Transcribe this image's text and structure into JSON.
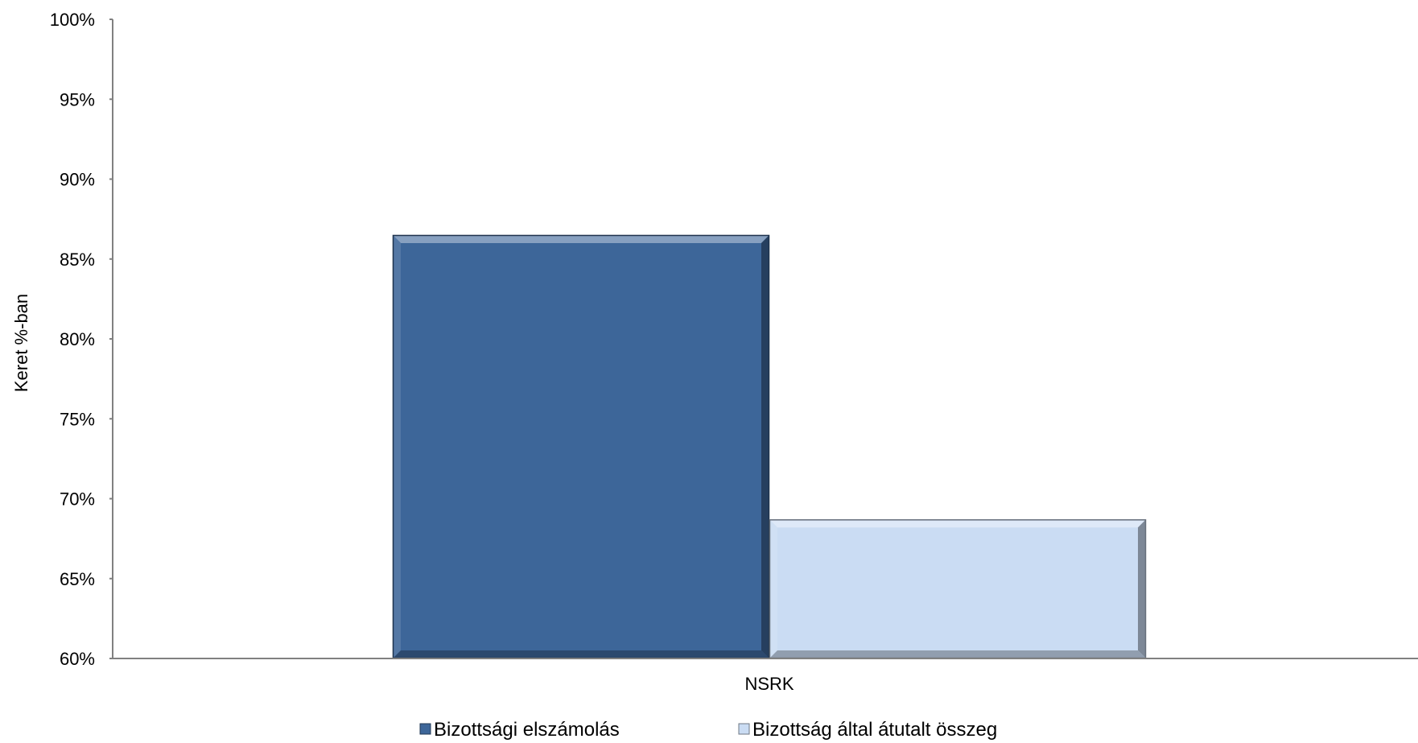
{
  "chart_data": {
    "type": "bar",
    "categories": [
      "NSRK"
    ],
    "series": [
      {
        "name": "Bizottsági elszámolás",
        "values": [
          86.5
        ],
        "color": "#3d6699"
      },
      {
        "name": "Bizottság által átutalt összeg",
        "values": [
          68.7
        ],
        "color": "#cadcf3"
      }
    ],
    "title": "",
    "xlabel": "",
    "ylabel": "Keret %-ban",
    "ylim": [
      60,
      100
    ],
    "ytick_step": 5,
    "y_tick_labels": [
      "60%",
      "65%",
      "70%",
      "75%",
      "80%",
      "85%",
      "90%",
      "95%",
      "100%"
    ],
    "grid": true,
    "grid_color": "#a9b8e0",
    "axis_color": "#808080",
    "legend_position": "bottom",
    "style": "3d-bevel"
  }
}
